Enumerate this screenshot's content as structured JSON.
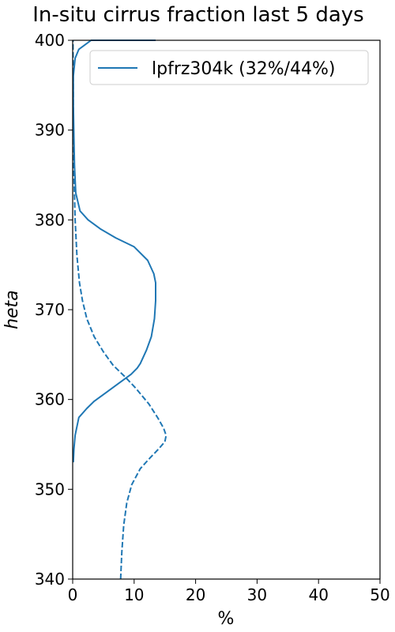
{
  "chart_data": {
    "type": "line",
    "title": "In-situ cirrus fraction last 5 days",
    "xlabel": "%",
    "ylabel": "heta",
    "xlim": [
      0,
      50
    ],
    "ylim": [
      340,
      400
    ],
    "xticks": [
      "0",
      "10",
      "20",
      "30",
      "40",
      "50"
    ],
    "yticks": [
      "340",
      "350",
      "360",
      "370",
      "380",
      "390",
      "400"
    ],
    "grid": false,
    "legend": {
      "placement": "top-right",
      "entries": [
        "lpfrz304k (32%/44%)"
      ]
    },
    "series": [
      {
        "name": "lpfrz304k (32%/44%)",
        "style": "solid",
        "color": "#1f77b4",
        "x": [
          0.1,
          0.2,
          0.4,
          1.0,
          2.3,
          3.5,
          5.5,
          7.5,
          9.5,
          10.5,
          11.0,
          12.0,
          12.8,
          13.3,
          13.5,
          13.5,
          13.2,
          12.2,
          10.0,
          7.0,
          4.5,
          2.5,
          1.2,
          0.5,
          0.3,
          0.2,
          0.1,
          0.1,
          0.4,
          1.0,
          2.0,
          3.0,
          4.0,
          6.0,
          8.0,
          10.0,
          11.3,
          12.3,
          13.0,
          13.4,
          13.5
        ],
        "y": [
          353,
          354.5,
          356,
          358,
          359,
          359.8,
          360.8,
          361.8,
          362.8,
          363.5,
          364,
          365.5,
          367,
          369,
          371,
          373,
          374,
          375.5,
          377,
          378,
          379,
          380,
          381,
          383,
          386,
          389,
          393,
          396,
          398,
          399,
          399.5,
          400,
          400,
          400,
          400,
          400,
          400,
          400,
          400,
          400,
          400
        ]
      },
      {
        "name": "",
        "style": "dashed",
        "color": "#1f77b4",
        "x": [
          7.8,
          8.0,
          8.3,
          8.8,
          9.6,
          11.0,
          12.6,
          14.0,
          15.0,
          15.2,
          14.8,
          13.8,
          12.4,
          10.2,
          8.4,
          6.6,
          5.0,
          3.5,
          2.3,
          1.6,
          1.1,
          0.7,
          0.4,
          0.2,
          0.1,
          0.05
        ],
        "y": [
          340,
          343,
          346,
          348.5,
          350.5,
          352.3,
          353.5,
          354.5,
          355.3,
          356,
          356.8,
          358,
          359.5,
          361.3,
          362.6,
          363.8,
          365.3,
          367,
          369,
          371,
          373,
          376,
          380,
          385,
          392,
          400
        ]
      }
    ]
  }
}
